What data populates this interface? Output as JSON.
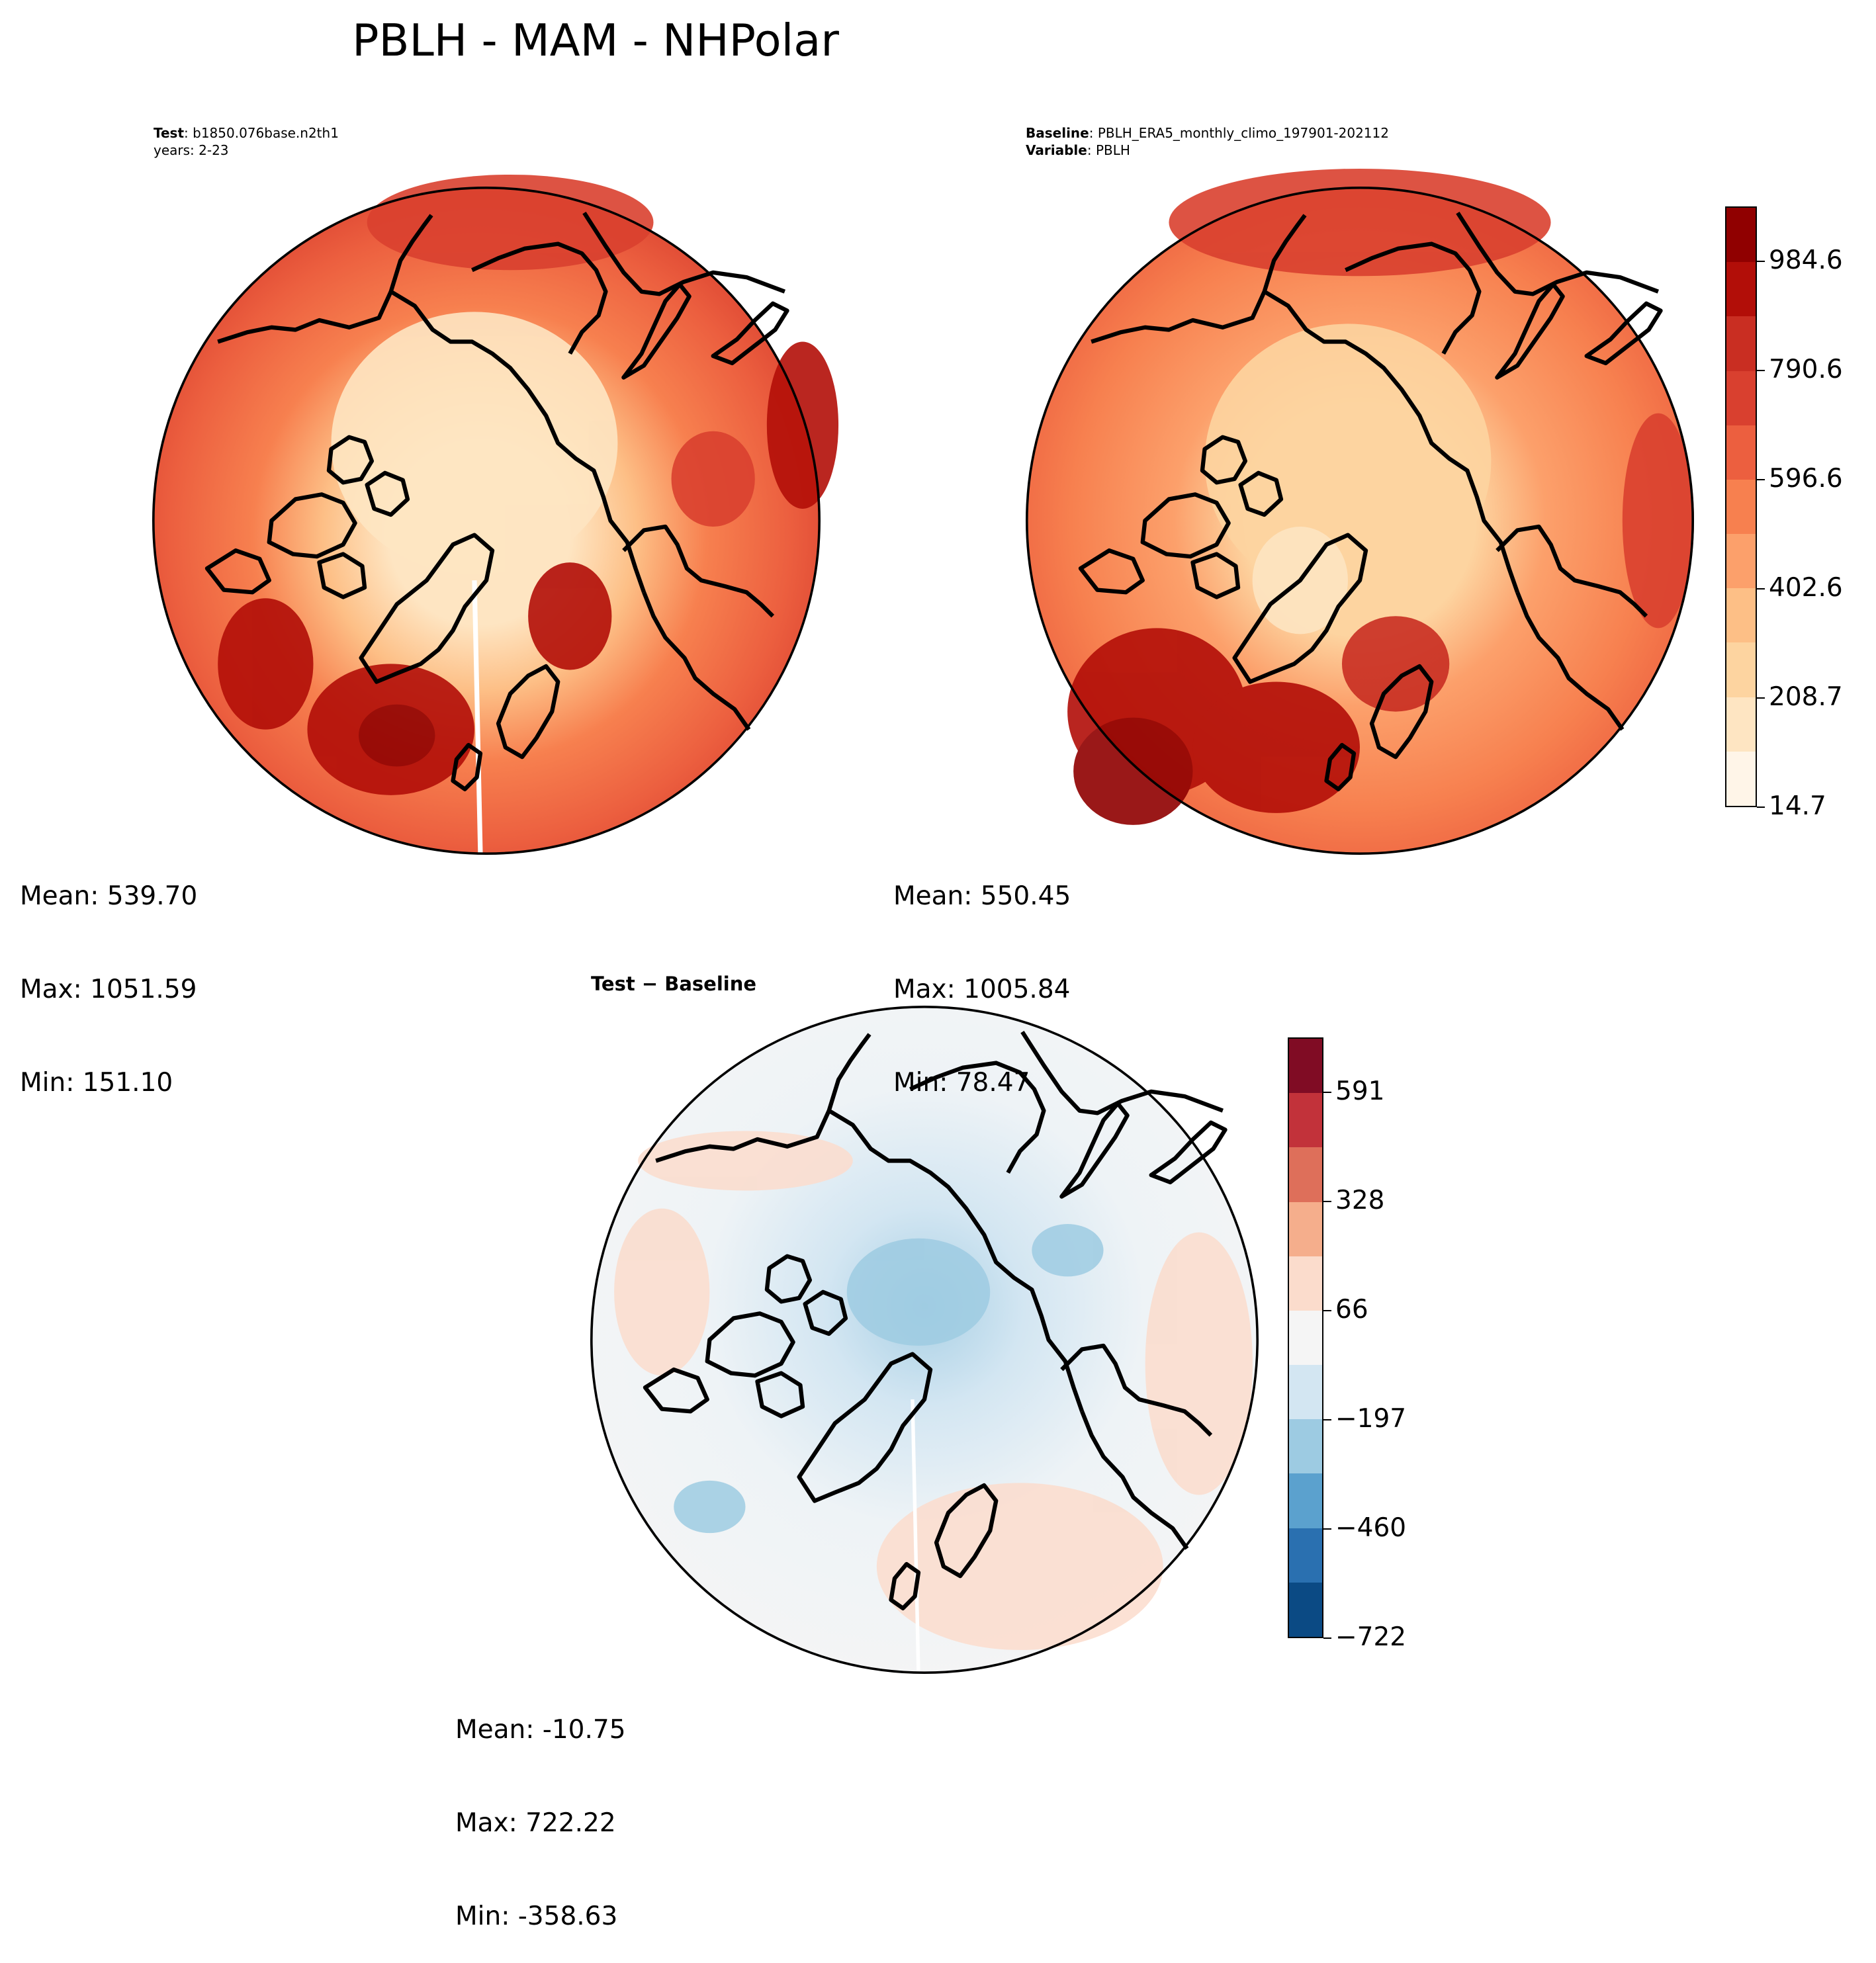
{
  "title": "PBLH - MAM - NHPolar",
  "panels": {
    "test": {
      "header_label": "Test",
      "header_value": "b1850.076base.n2th1",
      "header_line2": "years: 2-23",
      "mean": "Mean: 539.70",
      "max": "Max: 1051.59",
      "min": "Min: 151.10"
    },
    "baseline": {
      "header_label": "Baseline",
      "header_value": "PBLH_ERA5_monthly_climo_197901-202112",
      "header_label2": "Variable",
      "header_value2": "PBLH",
      "mean": "Mean: 550.45",
      "max": "Max: 1005.84",
      "min": "Min: 78.47"
    },
    "difference": {
      "title_a": "Test",
      "title_op": " − ",
      "title_b": "Baseline",
      "mean": "Mean: -10.75",
      "max": "Max: 722.22",
      "min": "Min: -358.63"
    }
  },
  "colorbars": {
    "pblh": {
      "colormap": "OrRd-like sequential",
      "min": 14.7,
      "max": 1081.6,
      "ticks": [
        "984.6",
        "790.6",
        "596.6",
        "402.6",
        "208.7",
        "14.7"
      ],
      "colors": [
        "#fff5e8",
        "#fee5c2",
        "#fdd4a0",
        "#fdbf86",
        "#fca06b",
        "#f7804f",
        "#ec5f3f",
        "#d9402f",
        "#c92e22",
        "#b20e08",
        "#900000"
      ]
    },
    "diff": {
      "colormap": "RdBu_r diverging",
      "ticks": [
        "591",
        "328",
        "66",
        "−197",
        "−460",
        "−722"
      ],
      "colors": [
        "#0b4a84",
        "#2a70b0",
        "#5ba1ce",
        "#9dcbe2",
        "#d3e6f2",
        "#f5f5f5",
        "#fbdccc",
        "#f5ae8c",
        "#de6f5a",
        "#c2323a",
        "#800c24"
      ]
    }
  }
}
